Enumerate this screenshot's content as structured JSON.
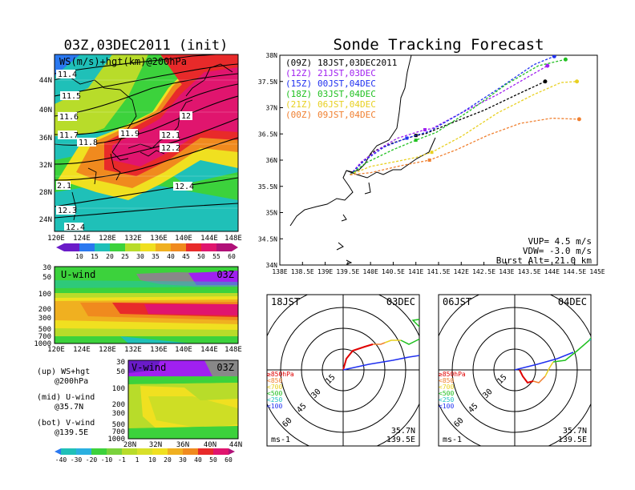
{
  "left": {
    "title": "03Z,03DEC2011 (init)",
    "map_label": "WS(m/s)+hgt(km)@200hPa",
    "map_lon_ticks": [
      "120E",
      "124E",
      "128E",
      "132E",
      "136E",
      "140E",
      "144E",
      "148E"
    ],
    "map_lat_ticks": [
      "44N",
      "40N",
      "36N",
      "32N",
      "28N",
      "24N"
    ],
    "hgt_labels": [
      "11.4",
      "11.5",
      "11.6",
      "11.7",
      "11.8",
      "11.9",
      "12",
      "12.1",
      "12.2",
      "12.4",
      "12.3",
      "12.4",
      "2.1"
    ],
    "ws_colorbar": [
      "10",
      "15",
      "20",
      "25",
      "30",
      "35",
      "40",
      "45",
      "50",
      "55",
      "60"
    ],
    "uwind_label": "U-wind",
    "uwind_time": "03Z",
    "uwind_p_ticks": [
      "30",
      "50",
      "100",
      "200",
      "300",
      "500",
      "700",
      "1000"
    ],
    "uwind_lon_ticks": [
      "120E",
      "124E",
      "128E",
      "132E",
      "136E",
      "140E",
      "144E",
      "148E"
    ],
    "vwind_label": "V-wind",
    "vwind_time": "03Z",
    "vwind_p_ticks": [
      "30",
      "50",
      "100",
      "200",
      "300",
      "500",
      "700",
      "1000"
    ],
    "vwind_lat_ticks": [
      "28N",
      "32N",
      "36N",
      "40N",
      "44N"
    ],
    "notes": [
      "(up) WS+hgt",
      "@200hPa",
      "(mid) U-wind",
      "@35.7N",
      "(bot) V-wind",
      "@139.5E"
    ],
    "wind_colorbar": [
      "-40",
      "-30",
      "-20",
      "-10",
      "-1",
      "1",
      "10",
      "20",
      "30",
      "40",
      "50",
      "60"
    ]
  },
  "right": {
    "title": "Sonde Tracking Forecast",
    "legend": [
      {
        "code": "(09Z)",
        "label": "18JST,03DEC2011",
        "color": "#000000"
      },
      {
        "code": "(12Z)",
        "label": "21JST,03DEC",
        "color": "#a020f0"
      },
      {
        "code": "(15Z)",
        "label": "00JST,04DEC",
        "color": "#2030f0"
      },
      {
        "code": "(18Z)",
        "label": "03JST,04DEC",
        "color": "#20c020"
      },
      {
        "code": "(21Z)",
        "label": "06JST,04DEC",
        "color": "#e8d020"
      },
      {
        "code": "(00Z)",
        "label": "09JST,04DEC",
        "color": "#f08030"
      }
    ],
    "params": [
      "VUP= 4.5 m/s",
      "VDW= -3.0 m/s",
      "Burst Alt= 21.0 km"
    ],
    "hodo1": {
      "time": "18JST",
      "date": "03DEC",
      "loc1": "35.7N",
      "loc2": "139.5E",
      "unit": "ms-1"
    },
    "hodo2": {
      "time": "06JST",
      "date": "04DEC",
      "loc1": "35.7N",
      "loc2": "139.5E",
      "unit": "ms-1"
    },
    "hodo_rings": [
      "15",
      "30",
      "45",
      "60"
    ],
    "hodo_legend": [
      {
        "label": "≥850hPa",
        "color": "#e00000"
      },
      {
        "label": "<850",
        "color": "#f08030"
      },
      {
        "label": "<700",
        "color": "#e8d020"
      },
      {
        "label": "<500",
        "color": "#20c020"
      },
      {
        "label": "<250",
        "color": "#20c0c0"
      },
      {
        "label": "<100",
        "color": "#2030f0"
      }
    ]
  },
  "chart_data": [
    {
      "type": "line",
      "title": "Sonde Tracking Forecast",
      "xlabel": "",
      "ylabel": "",
      "xlim": [
        138,
        145
      ],
      "ylim": [
        34,
        38
      ],
      "x_ticks": [
        "138E",
        "138.5E",
        "139E",
        "139.5E",
        "140E",
        "140.5E",
        "141E",
        "141.5E",
        "142E",
        "142.5E",
        "143E",
        "143.5E",
        "144E",
        "144.5E",
        "145E"
      ],
      "y_ticks": [
        "34N",
        "34.5N",
        "35N",
        "35.5N",
        "36N",
        "36.5N",
        "37N",
        "37.5N",
        "38N"
      ],
      "series": [
        {
          "name": "(09Z) 18JST,03DEC2011",
          "color": "#000000",
          "points": [
            [
              139.55,
              35.72
            ],
            [
              139.8,
              35.95
            ],
            [
              140.1,
              36.18
            ],
            [
              140.5,
              36.33
            ],
            [
              141.0,
              36.47
            ],
            [
              141.2,
              36.5
            ],
            [
              141.7,
              36.68
            ],
            [
              142.5,
              36.95
            ],
            [
              143.3,
              37.28
            ],
            [
              143.85,
              37.5
            ]
          ]
        },
        {
          "name": "(12Z) 21JST,03DEC",
          "color": "#a020f0",
          "points": [
            [
              139.55,
              35.72
            ],
            [
              139.8,
              35.97
            ],
            [
              140.2,
              36.22
            ],
            [
              140.6,
              36.42
            ],
            [
              141.2,
              36.58
            ],
            [
              141.35,
              36.6
            ],
            [
              142.0,
              36.9
            ],
            [
              142.8,
              37.25
            ],
            [
              143.5,
              37.6
            ],
            [
              143.9,
              37.8
            ]
          ]
        },
        {
          "name": "(15Z) 00JST,04DEC",
          "color": "#2030f0",
          "points": [
            [
              139.55,
              35.72
            ],
            [
              139.85,
              35.98
            ],
            [
              140.3,
              36.25
            ],
            [
              140.8,
              36.42
            ],
            [
              141.3,
              36.55
            ],
            [
              142.0,
              36.9
            ],
            [
              142.8,
              37.35
            ],
            [
              143.6,
              37.82
            ],
            [
              144.05,
              37.98
            ]
          ]
        },
        {
          "name": "(18Z) 03JST,04DEC",
          "color": "#20c020",
          "points": [
            [
              139.55,
              35.72
            ],
            [
              139.9,
              35.95
            ],
            [
              140.5,
              36.2
            ],
            [
              141.0,
              36.38
            ],
            [
              141.45,
              36.53
            ],
            [
              142.2,
              36.95
            ],
            [
              143.0,
              37.45
            ],
            [
              143.7,
              37.8
            ],
            [
              144.3,
              37.92
            ]
          ]
        },
        {
          "name": "(21Z) 06JST,04DEC",
          "color": "#e8d020",
          "points": [
            [
              139.55,
              35.72
            ],
            [
              140.0,
              35.88
            ],
            [
              140.6,
              35.98
            ],
            [
              141.0,
              36.05
            ],
            [
              141.35,
              36.15
            ],
            [
              142.0,
              36.45
            ],
            [
              142.8,
              36.9
            ],
            [
              143.6,
              37.25
            ],
            [
              144.2,
              37.48
            ],
            [
              144.55,
              37.5
            ]
          ]
        },
        {
          "name": "(00Z) 09JST,04DEC",
          "color": "#f08030",
          "points": [
            [
              139.55,
              35.72
            ],
            [
              140.0,
              35.76
            ],
            [
              140.7,
              35.9
            ],
            [
              141.3,
              36.0
            ],
            [
              141.9,
              36.2
            ],
            [
              142.6,
              36.48
            ],
            [
              143.3,
              36.7
            ],
            [
              144.0,
              36.8
            ],
            [
              144.6,
              36.78
            ]
          ]
        }
      ],
      "annotations": [
        "VUP= 4.5 m/s",
        "VDW= -3.0 m/s",
        "Burst Alt= 21.0 km"
      ],
      "legend_position": "top-left",
      "grid": false
    }
  ]
}
